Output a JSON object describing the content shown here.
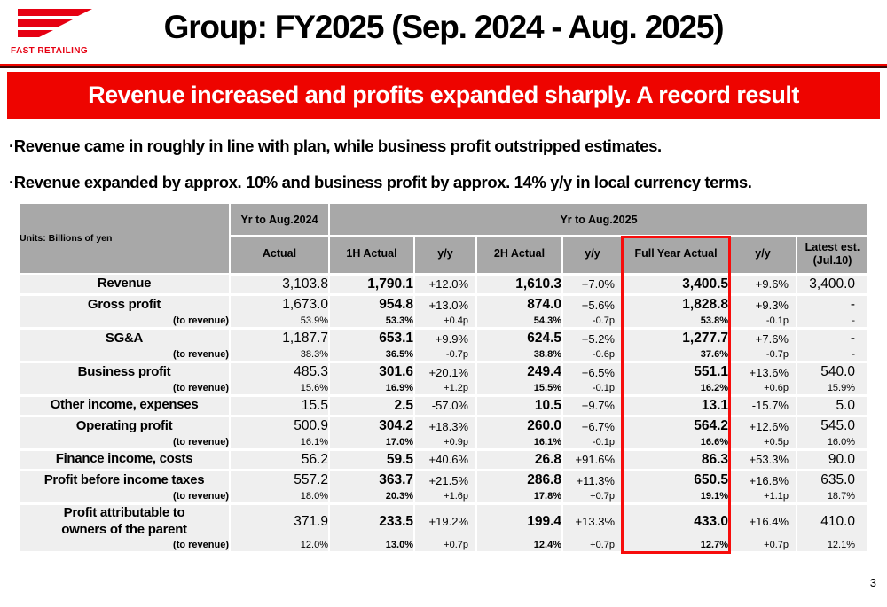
{
  "colors": {
    "brand_red": "#e60012",
    "banner_red": "#ee0400",
    "header_gray": "#a8a8a8",
    "row_gray": "#efefef",
    "highlight_red": "#f70d0c"
  },
  "header": {
    "logo_text": "FAST RETAILING",
    "title": "Group: FY2025 (Sep. 2024 - Aug. 2025)"
  },
  "banner": {
    "text": "Revenue increased and profits expanded sharply. A record result"
  },
  "bullets": [
    "·Revenue came in roughly in line with plan, while business profit outstripped estimates.",
    "·Revenue expanded by approx. 10% and business profit by approx. 14% y/y in local currency terms."
  ],
  "table": {
    "units_label": "Units: Billions of yen",
    "group_2024": "Yr to Aug.2024",
    "group_2025": "Yr to Aug.2025",
    "columns": [
      "Actual",
      "1H Actual",
      "y/y",
      "2H Actual",
      "y/y",
      "Full Year Actual",
      "y/y",
      "Latest est.\n(Jul.10)"
    ],
    "rows": [
      {
        "label": "Revenue",
        "values": [
          "3,103.8",
          "1,790.1",
          "+12.0%",
          "1,610.3",
          "+7.0%",
          "3,400.5",
          "+9.6%",
          "3,400.0"
        ]
      },
      {
        "label": "Gross profit",
        "sub_label": "(to revenue)",
        "values": [
          "1,673.0",
          "954.8",
          "+13.0%",
          "874.0",
          "+5.6%",
          "1,828.8",
          "+9.3%",
          "-"
        ],
        "sub_values": [
          "53.9%",
          "53.3%",
          "+0.4p",
          "54.3%",
          "-0.7p",
          "53.8%",
          "-0.1p",
          "-"
        ]
      },
      {
        "label": "SG&A",
        "sub_label": "(to revenue)",
        "values": [
          "1,187.7",
          "653.1",
          "+9.9%",
          "624.5",
          "+5.2%",
          "1,277.7",
          "+7.6%",
          "-"
        ],
        "sub_values": [
          "38.3%",
          "36.5%",
          "-0.7p",
          "38.8%",
          "-0.6p",
          "37.6%",
          "-0.7p",
          "-"
        ]
      },
      {
        "label": "Business profit",
        "sub_label": "(to revenue)",
        "values": [
          "485.3",
          "301.6",
          "+20.1%",
          "249.4",
          "+6.5%",
          "551.1",
          "+13.6%",
          "540.0"
        ],
        "sub_values": [
          "15.6%",
          "16.9%",
          "+1.2p",
          "15.5%",
          "-0.1p",
          "16.2%",
          "+0.6p",
          "15.9%"
        ]
      },
      {
        "label": "Other income, expenses",
        "values": [
          "15.5",
          "2.5",
          "-57.0%",
          "10.5",
          "+9.7%",
          "13.1",
          "-15.7%",
          "5.0"
        ]
      },
      {
        "label": "Operating profit",
        "sub_label": "(to revenue)",
        "values": [
          "500.9",
          "304.2",
          "+18.3%",
          "260.0",
          "+6.7%",
          "564.2",
          "+12.6%",
          "545.0"
        ],
        "sub_values": [
          "16.1%",
          "17.0%",
          "+0.9p",
          "16.1%",
          "-0.1p",
          "16.6%",
          "+0.5p",
          "16.0%"
        ]
      },
      {
        "label": "Finance income, costs",
        "values": [
          "56.2",
          "59.5",
          "+40.6%",
          "26.8",
          "+91.6%",
          "86.3",
          "+53.3%",
          "90.0"
        ]
      },
      {
        "label": "Profit before income taxes",
        "sub_label": "(to revenue)",
        "values": [
          "557.2",
          "363.7",
          "+21.5%",
          "286.8",
          "+11.3%",
          "650.5",
          "+16.8%",
          "635.0"
        ],
        "sub_values": [
          "18.0%",
          "20.3%",
          "+1.6p",
          "17.8%",
          "+0.7p",
          "19.1%",
          "+1.1p",
          "18.7%"
        ]
      },
      {
        "label": "Profit attributable to\nowners of the parent",
        "sub_label": "(to revenue)",
        "values": [
          "371.9",
          "233.5",
          "+19.2%",
          "199.4",
          "+13.3%",
          "433.0",
          "+16.4%",
          "410.0"
        ],
        "sub_values": [
          "12.0%",
          "13.0%",
          "+0.7p",
          "12.4%",
          "+0.7p",
          "12.7%",
          "+0.7p",
          "12.1%"
        ]
      }
    ]
  },
  "page_number": "3"
}
